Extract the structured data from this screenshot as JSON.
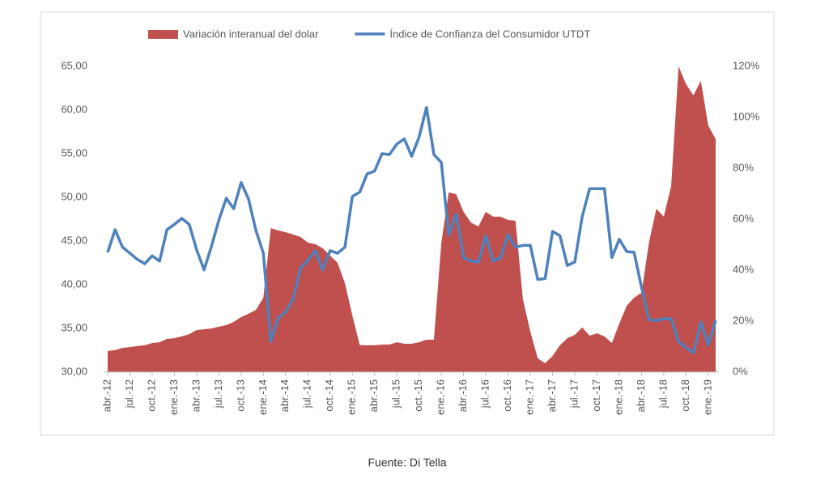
{
  "chart_data": {
    "type": "area_line",
    "categories": [
      "abr.-12",
      null,
      null,
      "jul.-12",
      null,
      null,
      "oct.-12",
      null,
      null,
      "ene.-13",
      null,
      null,
      "abr.-13",
      null,
      null,
      "jul.-13",
      null,
      null,
      "oct.-13",
      null,
      null,
      "ene.-14",
      null,
      null,
      "abr.-14",
      null,
      null,
      "jul.-14",
      null,
      null,
      "oct.-14",
      null,
      null,
      "ene.-15",
      null,
      null,
      "abr.-15",
      null,
      null,
      "jul.-15",
      null,
      null,
      "oct.-15",
      null,
      null,
      "ene.-16",
      null,
      null,
      "abr.-16",
      null,
      null,
      "jul.-16",
      null,
      null,
      "oct.-16",
      null,
      null,
      "ene.-17",
      null,
      null,
      "abr.-17",
      null,
      null,
      "jul.-17",
      null,
      null,
      "oct.-17",
      null,
      null,
      "ene.-18",
      null,
      null,
      "abr.-18",
      null,
      null,
      "jul.-18",
      null,
      null,
      "oct.-18",
      null,
      null,
      "ene.-19",
      null
    ],
    "series": [
      {
        "name": "Variación interanual del dolar",
        "color": "#c0504d",
        "axis": "y2",
        "kind": "area",
        "values": [
          8.3,
          8.6,
          9.5,
          9.8,
          10.2,
          10.5,
          11.4,
          11.7,
          13.0,
          13.3,
          14.0,
          14.9,
          16.5,
          16.8,
          17.1,
          17.8,
          18.4,
          19.7,
          21.6,
          22.9,
          24.4,
          29.2,
          56.5,
          55.6,
          54.9,
          54.0,
          53.0,
          50.8,
          50.2,
          48.6,
          45.7,
          42.9,
          34.9,
          22.2,
          10.5,
          10.5,
          10.5,
          10.8,
          10.8,
          11.7,
          11.1,
          11.1,
          11.7,
          12.7,
          12.7,
          50.8,
          70.5,
          69.8,
          62.9,
          58.7,
          57.1,
          62.9,
          61.0,
          61.0,
          59.7,
          59.4,
          28.6,
          15.9,
          5.4,
          3.5,
          6.3,
          10.5,
          13.3,
          14.6,
          17.5,
          14.3,
          15.2,
          14.0,
          11.4,
          19.0,
          26.0,
          29.2,
          31.1,
          50.8,
          64.1,
          61.0,
          73.0,
          120.0,
          113.0,
          108.6,
          114.3,
          96.8,
          91.4
        ]
      },
      {
        "name": "Índice de Confianza del Consumidor UTDT",
        "color": "#4f81bd",
        "axis": "y",
        "kind": "line",
        "values": [
          43.7,
          46.3,
          44.3,
          43.6,
          42.9,
          42.4,
          43.3,
          42.7,
          46.3,
          46.9,
          47.6,
          46.9,
          44.0,
          41.7,
          44.4,
          47.4,
          49.9,
          48.7,
          51.7,
          49.8,
          46.2,
          43.6,
          33.5,
          36.2,
          36.9,
          38.3,
          41.9,
          42.8,
          43.9,
          41.7,
          43.9,
          43.6,
          44.3,
          50.1,
          50.6,
          52.7,
          53.0,
          55.0,
          54.9,
          56.1,
          56.7,
          54.7,
          56.9,
          60.3,
          54.9,
          54.0,
          45.7,
          48.1,
          43.1,
          42.7,
          42.6,
          45.6,
          42.7,
          43.1,
          45.7,
          44.3,
          44.5,
          44.5,
          40.6,
          40.7,
          46.1,
          45.6,
          42.2,
          42.6,
          47.8,
          51.0,
          51.0,
          51.0,
          43.1,
          45.2,
          43.8,
          43.7,
          39.7,
          36.0,
          35.9,
          36.1,
          36.1,
          33.5,
          32.8,
          32.2,
          35.7,
          33.1,
          35.9
        ]
      }
    ],
    "ylim": [
      30,
      65
    ],
    "yticks": [
      {
        "value": 30,
        "label": "30,00"
      },
      {
        "value": 35,
        "label": "35,00"
      },
      {
        "value": 40,
        "label": "40,00"
      },
      {
        "value": 45,
        "label": "45,00"
      },
      {
        "value": 50,
        "label": "50,00"
      },
      {
        "value": 55,
        "label": "55,00"
      },
      {
        "value": 60,
        "label": "60,00"
      },
      {
        "value": 65,
        "label": "65,00"
      }
    ],
    "y2lim": [
      0,
      120
    ],
    "y2ticks": [
      {
        "value": 0,
        "label": "0%"
      },
      {
        "value": 20,
        "label": "20%"
      },
      {
        "value": 40,
        "label": "40%"
      },
      {
        "value": 60,
        "label": "60%"
      },
      {
        "value": 80,
        "label": "80%"
      },
      {
        "value": 100,
        "label": "100%"
      },
      {
        "value": 120,
        "label": "120%"
      }
    ],
    "grid": false,
    "source": "Fuente: Di Tella"
  }
}
